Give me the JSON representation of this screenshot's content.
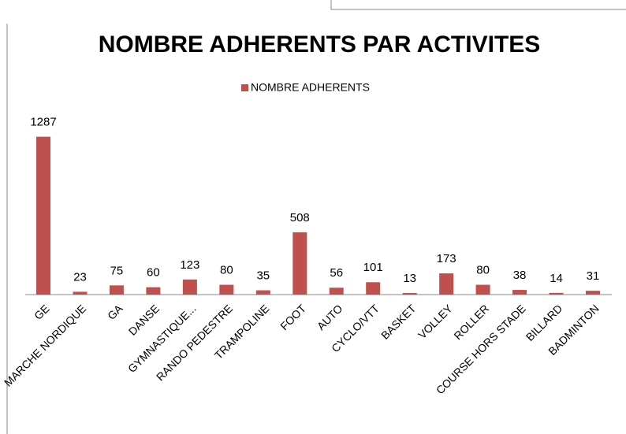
{
  "chart_data": {
    "type": "bar",
    "title": "NOMBRE ADHERENTS PAR ACTIVITES",
    "categories": [
      "GE",
      "MARCHE NORDIQUE",
      "GA",
      "DANSE",
      "GYMNASTIQUE...",
      "RANDO PEDESTRE",
      "TRAMPOLINE",
      "FOOT",
      "AUTO",
      "CYCLO/VTT",
      "BASKET",
      "VOLLEY",
      "ROLLER",
      "COURSE HORS STADE",
      "BILLARD",
      "BADMINTON"
    ],
    "series": [
      {
        "name": "NOMBRE ADHERENTS",
        "color": "#c0504d",
        "values": [
          1287,
          23,
          75,
          60,
          123,
          80,
          35,
          508,
          56,
          101,
          13,
          173,
          80,
          38,
          14,
          31
        ]
      }
    ],
    "ylim": [
      0,
      1400
    ],
    "legend": "top"
  }
}
